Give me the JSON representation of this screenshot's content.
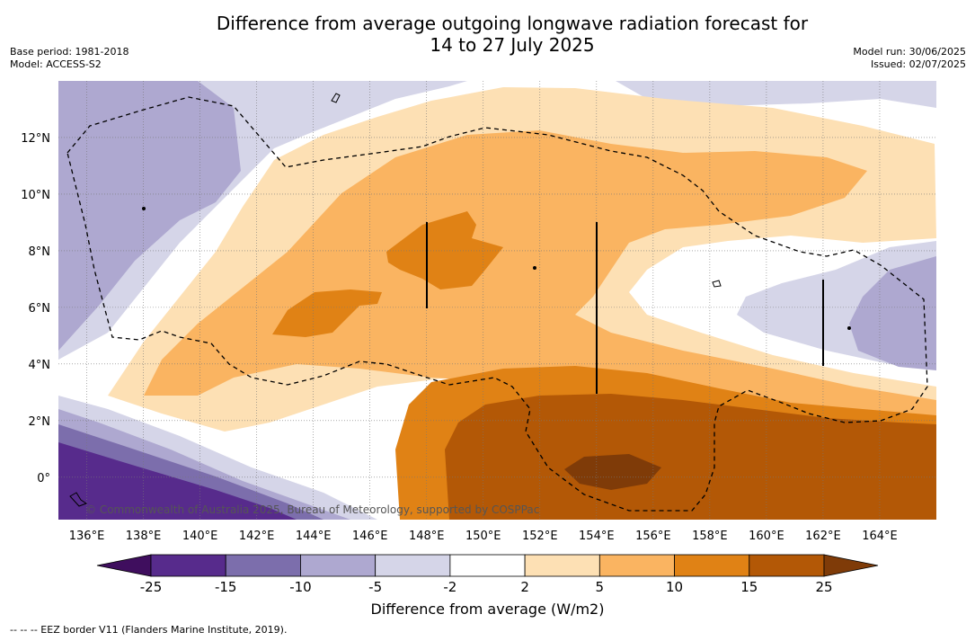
{
  "title": {
    "line1": "Difference from average outgoing longwave radiation forecast for",
    "line2": "14 to 27 July 2025"
  },
  "meta_left": {
    "base_period": "Base period: 1981-2018",
    "model": "Model: ACCESS-S2"
  },
  "meta_right": {
    "model_run": "Model run: 30/06/2025",
    "issued": "Issued: 02/07/2025"
  },
  "copyright": "© Commonwealth of Australia 2025, Bureau of Meteorology, supported by COSPPac",
  "map": {
    "lon_range": [
      135,
      166
    ],
    "lat_range": [
      -1.5,
      14
    ],
    "lon_ticks": [
      "136°E",
      "138°E",
      "140°E",
      "142°E",
      "144°E",
      "146°E",
      "148°E",
      "150°E",
      "152°E",
      "154°E",
      "156°E",
      "158°E",
      "160°E",
      "162°E",
      "164°E"
    ],
    "lat_ticks": [
      "0°",
      "2°N",
      "4°N",
      "6°N",
      "8°N",
      "10°N",
      "12°N"
    ],
    "grid": true,
    "legend_line_style": "dashed"
  },
  "colorbar": {
    "title": "Difference from average (W/m2)",
    "tick_labels": [
      "-25",
      "-15",
      "-10",
      "-5",
      "-2",
      "2",
      "5",
      "10",
      "15",
      "25"
    ],
    "colors": [
      "#3f0e5e",
      "#572b8c",
      "#7c6eac",
      "#aea8d0",
      "#d5d5e8",
      "#ffffff",
      "#fde0b4",
      "#fab461",
      "#e08215",
      "#b35806",
      "#7f3b08"
    ]
  },
  "footer": "--  --  -- EEZ border V11 (Flanders Marine Institute, 2019)."
}
